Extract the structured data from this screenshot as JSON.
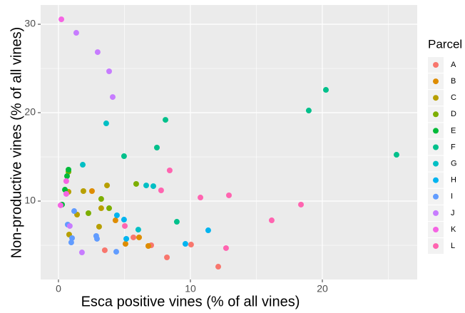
{
  "chart_data": {
    "type": "scatter",
    "x_label": "Esca positive vines (% of all vines)",
    "y_label": "Non-productive vines (% of all vines)",
    "legend_title": "Parcel",
    "legend_position": "right",
    "grid": true,
    "xlim": [
      -1.35,
      27.19
    ],
    "ylim": [
      1.13,
      32.18
    ],
    "xticks": [
      0,
      10,
      20
    ],
    "yticks": [
      10,
      20,
      30
    ],
    "series": [
      {
        "name": "A",
        "color": "#F8766D",
        "x": [
          3.51,
          5.68,
          7.03,
          8.22,
          10.05,
          12.11
        ],
        "values": [
          4.44,
          5.89,
          5.0,
          3.63,
          5.08,
          2.58
        ]
      },
      {
        "name": "B",
        "color": "#DE8C00",
        "x": [
          2.54,
          4.32,
          5.08,
          6.11,
          6.81
        ],
        "values": [
          11.13,
          7.82,
          5.16,
          5.89,
          4.92
        ]
      },
      {
        "name": "C",
        "color": "#B79F00",
        "x": [
          0.76,
          0.81,
          1.41,
          1.89,
          3.24,
          3.68,
          3.08
        ],
        "values": [
          11.05,
          6.21,
          8.47,
          11.13,
          9.19,
          11.77,
          7.1
        ]
      },
      {
        "name": "D",
        "color": "#7CAE00",
        "x": [
          0.76,
          2.27,
          3.24,
          3.84,
          5.89
        ],
        "values": [
          13.31,
          8.63,
          10.24,
          9.19,
          11.94
        ]
      },
      {
        "name": "E",
        "color": "#00BA38",
        "x": [
          0.49,
          0.65,
          0.76,
          0.27
        ],
        "values": [
          11.29,
          12.82,
          13.55,
          9.6
        ]
      },
      {
        "name": "F",
        "color": "#00C08B",
        "x": [
          4.97,
          7.46,
          8.11,
          8.97,
          18.97,
          20.27,
          25.62
        ],
        "values": [
          15.08,
          16.05,
          19.19,
          7.66,
          20.24,
          22.58,
          15.24
        ]
      },
      {
        "name": "G",
        "color": "#00BFC4",
        "x": [
          1.84,
          3.62,
          6.05,
          6.65,
          7.19
        ],
        "values": [
          14.11,
          18.79,
          6.77,
          11.77,
          11.69
        ]
      },
      {
        "name": "H",
        "color": "#00B4F0",
        "x": [
          4.43,
          4.97,
          5.14,
          9.62,
          11.35
        ],
        "values": [
          8.39,
          7.9,
          5.73,
          5.16,
          6.69
        ]
      },
      {
        "name": "I",
        "color": "#619CFF",
        "x": [
          1.19,
          0.7,
          1.03,
          0.97,
          2.86,
          2.92,
          4.38
        ],
        "values": [
          8.87,
          7.34,
          5.81,
          5.32,
          6.05,
          5.73,
          4.27
        ]
      },
      {
        "name": "J",
        "color": "#C77CFF",
        "x": [
          1.35,
          2.97,
          3.84,
          4.11,
          1.78,
          0.86
        ],
        "values": [
          29.03,
          26.85,
          24.68,
          21.77,
          4.19,
          7.18
        ]
      },
      {
        "name": "K",
        "color": "#F564E3",
        "x": [
          0.22,
          0.59,
          0.59,
          0.16
        ],
        "values": [
          30.56,
          12.26,
          10.81,
          9.52
        ]
      },
      {
        "name": "L",
        "color": "#FF64B0",
        "x": [
          8.43,
          7.78,
          10.76,
          12.92,
          12.7,
          16.16,
          18.38,
          5.03
        ],
        "values": [
          13.47,
          11.21,
          10.4,
          10.65,
          4.68,
          7.82,
          9.6,
          7.18
        ]
      }
    ]
  }
}
